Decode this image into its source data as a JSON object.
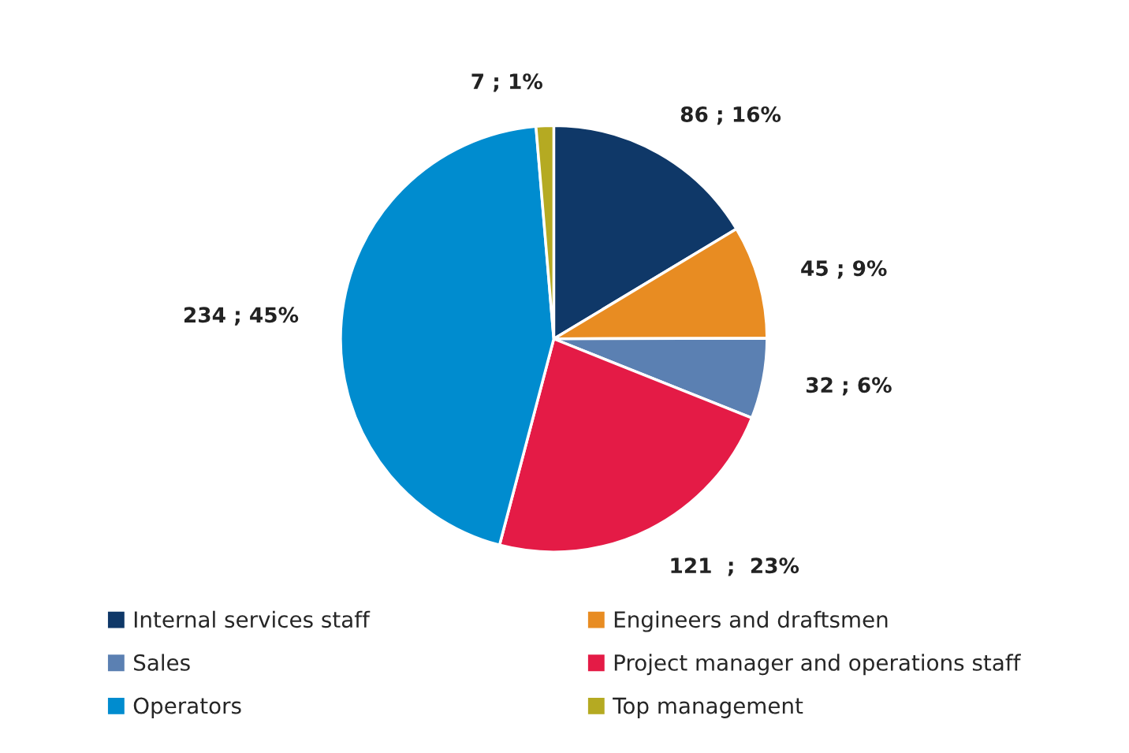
{
  "chart_data": {
    "type": "pie",
    "categories": [
      "Internal services staff",
      "Engineers and draftsmen",
      "Sales",
      "Project manager and operations staff",
      "Operators",
      "Top management"
    ],
    "values": [
      86,
      45,
      32,
      121,
      234,
      7
    ],
    "colors": [
      "#0f3868",
      "#e88c22",
      "#5b80b2",
      "#e41b46",
      "#008ccf",
      "#b5aa22"
    ],
    "value_labels": [
      "86 ; 16%",
      "45 ; 9%",
      "32 ; 6%",
      "121  ;  23%",
      "234 ; 45%",
      "7 ; 1%"
    ],
    "legend": "bottom"
  }
}
